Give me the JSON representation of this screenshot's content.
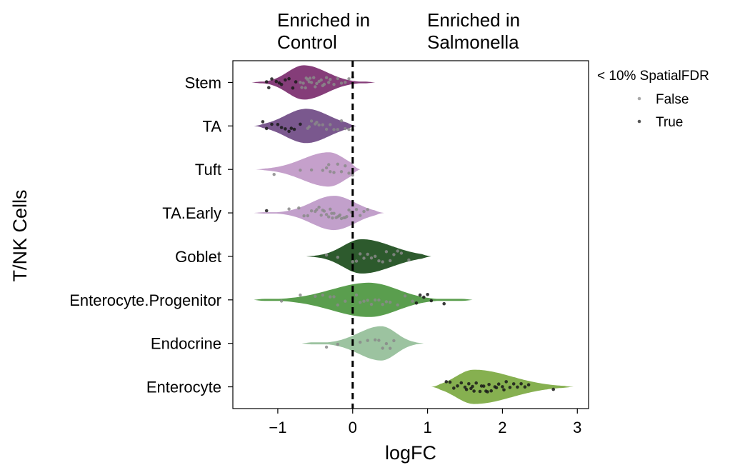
{
  "chart_data": {
    "type": "violin",
    "title": "",
    "xlabel": "logFC",
    "ylabel": "T/NK Cells",
    "xlim": [
      -1.6,
      3.15
    ],
    "xticks": [
      -1,
      0,
      1,
      2,
      3
    ],
    "xtick_labels": [
      "−1",
      "0",
      "1",
      "2",
      "3"
    ],
    "reference_line_x": 0,
    "annotations": [
      {
        "text": "Enriched in\nControl",
        "side": "left of zero"
      },
      {
        "text": "Enriched in\nSalmonella",
        "side": "right of zero"
      }
    ],
    "legend": {
      "title": "< 10% SpatialFDR",
      "entries": [
        {
          "label": "False",
          "color": "#a9a9a9"
        },
        {
          "label": "True",
          "color": "#555555"
        }
      ],
      "location": "outside right"
    },
    "categories": [
      "Stem",
      "TA",
      "Tuft",
      "TA.Early",
      "Goblet",
      "Enterocyte.Progenitor",
      "Endocrine",
      "Enterocyte"
    ],
    "violins": [
      {
        "name": "Stem",
        "color": "#7b2d6e",
        "opacity": 0.92,
        "min": -1.35,
        "max": 0.3,
        "peak": -0.65,
        "sd_left": 0.22,
        "sd_right": 0.3,
        "tail": 0.05,
        "true_points": [
          -1.15,
          -1.12,
          -1.08,
          -1.02,
          -0.98,
          -0.95,
          -0.9,
          -0.85,
          -0.8,
          -0.76
        ],
        "false_points": [
          -0.7,
          -0.66,
          -0.62,
          -0.6,
          -0.58,
          -0.55,
          -0.52,
          -0.5,
          -0.48,
          -0.45,
          -0.42,
          -0.4,
          -0.38,
          -0.35,
          -0.32,
          -0.3,
          -0.25,
          -0.2,
          -0.15,
          -0.1,
          -0.05,
          0.0,
          -0.68,
          -0.63,
          -0.57
        ]
      },
      {
        "name": "TA",
        "color": "#6f4a84",
        "opacity": 0.92,
        "min": -1.32,
        "max": 0.05,
        "peak": -0.62,
        "sd_left": 0.28,
        "sd_right": 0.3,
        "tail": 0.04,
        "true_points": [
          -1.2,
          -1.15,
          -1.08,
          -1.0,
          -0.95,
          -0.9,
          -0.85,
          -0.82,
          -0.78,
          -0.7
        ],
        "false_points": [
          -0.6,
          -0.55,
          -0.5,
          -0.45,
          -0.4,
          -0.35,
          -0.3,
          -0.25,
          -0.2,
          -0.15,
          -0.1,
          -0.05,
          0.0,
          -0.58,
          -0.48
        ]
      },
      {
        "name": "Tuft",
        "color": "#c5a0cb",
        "opacity": 1.0,
        "min": -1.3,
        "max": 0.1,
        "peak": -0.32,
        "sd_left": 0.35,
        "sd_right": 0.22,
        "tail": 0.03,
        "true_points": [],
        "false_points": [
          -1.05,
          -0.7,
          -0.55,
          -0.4,
          -0.35,
          -0.32,
          -0.3,
          -0.25,
          -0.2,
          -0.15,
          -0.1,
          -0.05,
          0.0
        ]
      },
      {
        "name": "TA.Early",
        "color": "#c2a0cb",
        "opacity": 1.0,
        "min": -1.32,
        "max": 0.42,
        "peak": -0.25,
        "sd_left": 0.3,
        "sd_right": 0.28,
        "tail": 0.04,
        "true_points": [
          -1.15
        ],
        "false_points": [
          -0.85,
          -0.72,
          -0.65,
          -0.6,
          -0.55,
          -0.5,
          -0.45,
          -0.42,
          -0.4,
          -0.38,
          -0.35,
          -0.32,
          -0.3,
          -0.28,
          -0.25,
          -0.22,
          -0.2,
          -0.18,
          -0.15,
          -0.12,
          -0.1,
          -0.08,
          -0.05,
          -0.02,
          0.0,
          0.05,
          0.1,
          0.15,
          0.2,
          -0.48,
          -0.27,
          -0.17
        ]
      },
      {
        "name": "Goblet",
        "color": "#2d5a2d",
        "opacity": 1.0,
        "min": -0.62,
        "max": 1.05,
        "peak": 0.12,
        "sd_left": 0.25,
        "sd_right": 0.4,
        "tail": 0.04,
        "true_points": [],
        "false_points": [
          -0.35,
          -0.2,
          0.0,
          0.05,
          0.1,
          0.15,
          0.2,
          0.25,
          0.3,
          0.4,
          0.45,
          0.5,
          0.55,
          0.6,
          0.65,
          0.75,
          0.35
        ]
      },
      {
        "name": "Enterocyte.Progenitor",
        "color": "#5a9e4e",
        "opacity": 1.0,
        "min": -1.32,
        "max": 1.6,
        "peak": 0.22,
        "sd_left": 0.5,
        "sd_right": 0.38,
        "tail": 0.06,
        "true_points": [
          0.85,
          0.9,
          0.95,
          1.0,
          1.05,
          1.22
        ],
        "false_points": [
          -0.95,
          -0.7,
          -0.5,
          -0.4,
          -0.3,
          -0.2,
          -0.1,
          0.0,
          0.1,
          0.15,
          0.2,
          0.25,
          0.3,
          0.35,
          0.4,
          0.5,
          0.6,
          0.7,
          0.8,
          -0.25,
          0.05,
          0.45
        ]
      },
      {
        "name": "Endocrine",
        "color": "#9cc3a0",
        "opacity": 1.0,
        "min": -0.68,
        "max": 0.95,
        "peak": 0.38,
        "sd_left": 0.3,
        "sd_right": 0.2,
        "tail": 0.06,
        "true_points": [],
        "false_points": [
          -0.35,
          -0.2,
          0.1,
          0.2,
          0.3,
          0.35,
          0.4,
          0.45,
          0.5,
          0.55
        ]
      },
      {
        "name": "Enterocyte",
        "color": "#86b050",
        "opacity": 1.0,
        "min": 1.05,
        "max": 2.95,
        "peak": 1.62,
        "sd_left": 0.24,
        "sd_right": 0.5,
        "tail": 0.03,
        "true_points": [
          1.25,
          1.3,
          1.35,
          1.4,
          1.45,
          1.5,
          1.55,
          1.6,
          1.65,
          1.7,
          1.75,
          1.8,
          1.85,
          1.9,
          1.95,
          2.0,
          2.05,
          2.1,
          2.15,
          2.2,
          2.25,
          2.3,
          2.35,
          2.68,
          1.52,
          1.62,
          1.72,
          1.82,
          1.92,
          2.02,
          1.58,
          1.78
        ],
        "false_points": []
      }
    ]
  }
}
